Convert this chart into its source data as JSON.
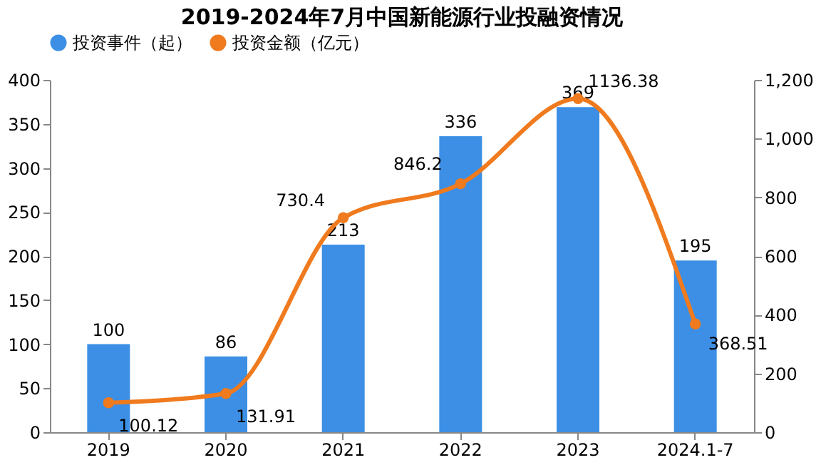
{
  "chart_data": {
    "type": "bar",
    "title": "2019-2024年7月中国新能源行业投融资情况",
    "categories": [
      "2019",
      "2020",
      "2021",
      "2022",
      "2023",
      "2024.1-7"
    ],
    "series": [
      {
        "name": "投资事件（起）",
        "color": "#3c8fe4",
        "values": [
          100,
          86,
          213,
          336,
          369,
          195
        ]
      },
      {
        "name": "投资金额（亿元）",
        "color": "#f07a1e",
        "type": "line",
        "axis": "y2",
        "marker": "circle",
        "values": [
          100.12,
          131.91,
          730.4,
          846.2,
          1136.38,
          368.51
        ]
      }
    ],
    "ylim": [
      0,
      400
    ],
    "yticks": [
      0,
      50,
      100,
      150,
      200,
      250,
      300,
      350,
      400
    ],
    "y2lim": [
      0,
      1200
    ],
    "y2ticks": [
      0,
      200,
      400,
      600,
      800,
      {
        "value": 1000,
        "label": "1,000"
      },
      {
        "value": 1200,
        "label": "1,200"
      }
    ],
    "data_labels": true,
    "legend": "top",
    "grid": false
  }
}
